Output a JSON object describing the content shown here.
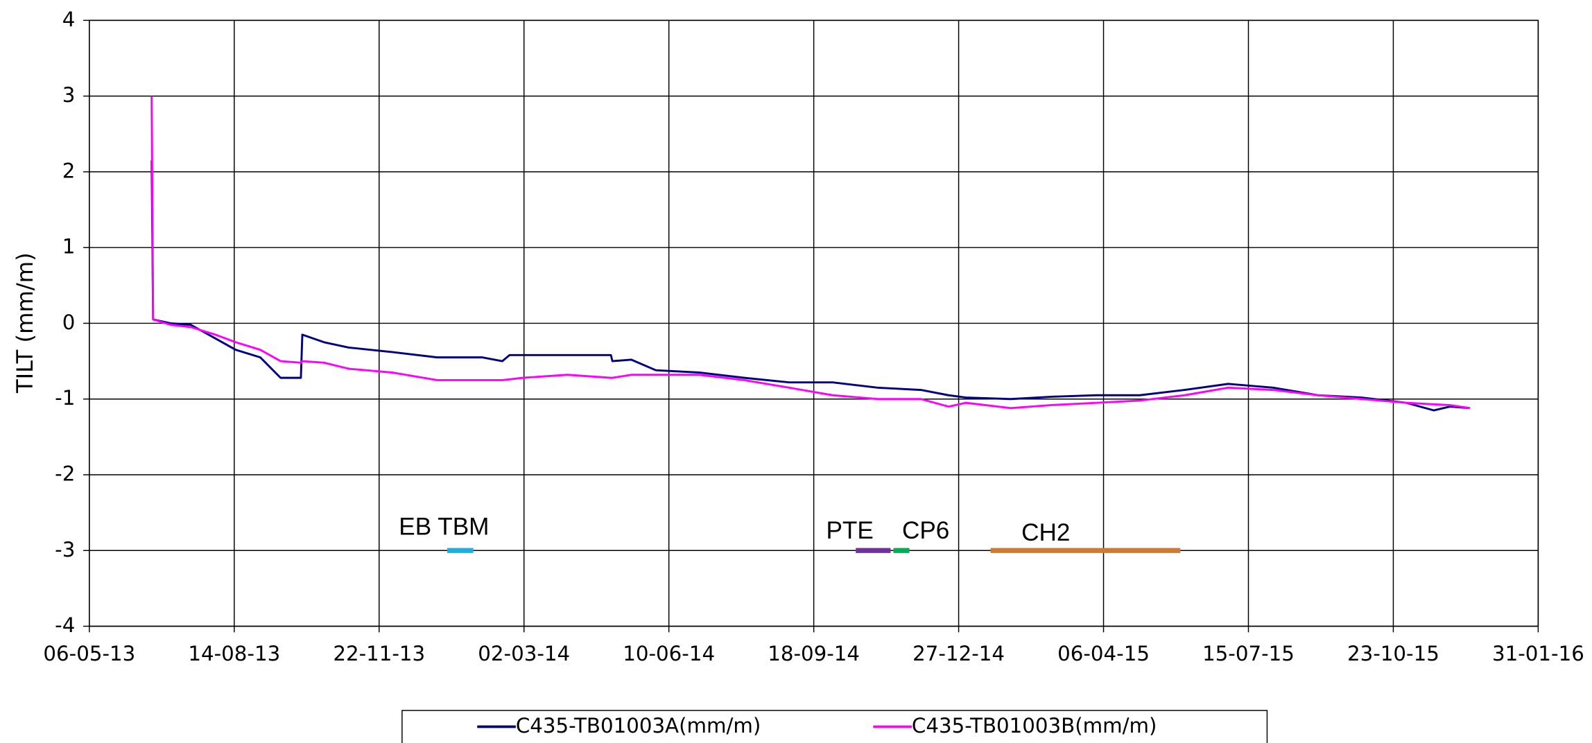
{
  "chart_data": {
    "type": "line",
    "y_label": "TILT (mm/m)",
    "x": [
      "2013-06-18",
      "2013-06-19",
      "2013-07-01",
      "2013-07-15",
      "2013-08-01",
      "2013-08-15",
      "2013-09-01",
      "2013-09-15",
      "2013-09-29",
      "2013-09-30",
      "2013-10-15",
      "2013-11-01",
      "2013-12-01",
      "2014-01-01",
      "2014-02-01",
      "2014-02-15",
      "2014-02-20",
      "2014-03-01",
      "2014-04-01",
      "2014-05-01",
      "2014-05-02",
      "2014-05-15",
      "2014-06-01",
      "2014-07-01",
      "2014-08-01",
      "2014-09-01",
      "2014-10-01",
      "2014-11-01",
      "2014-12-01",
      "2014-12-20",
      "2015-01-01",
      "2015-02-01",
      "2015-03-01",
      "2015-04-01",
      "2015-05-01",
      "2015-06-01",
      "2015-07-01",
      "2015-08-01",
      "2015-09-01",
      "2015-10-01",
      "2015-11-01",
      "2015-11-20",
      "2015-12-01",
      "2015-12-15"
    ],
    "series": [
      {
        "name": "C435-TB01003A(mm/m)",
        "color": "#000080",
        "values": [
          2.15,
          0.05,
          0.0,
          -0.02,
          -0.2,
          -0.35,
          -0.45,
          -0.72,
          -0.72,
          -0.15,
          -0.25,
          -0.32,
          -0.38,
          -0.45,
          -0.45,
          -0.5,
          -0.42,
          -0.42,
          -0.42,
          -0.42,
          -0.5,
          -0.48,
          -0.62,
          -0.65,
          -0.72,
          -0.78,
          -0.78,
          -0.85,
          -0.88,
          -0.95,
          -0.98,
          -1.0,
          -0.97,
          -0.95,
          -0.95,
          -0.88,
          -0.8,
          -0.85,
          -0.95,
          -0.98,
          -1.05,
          -1.15,
          -1.1,
          -1.12
        ]
      },
      {
        "name": "C435-TB01003B(mm/m)",
        "color": "#ff00ff",
        "values": [
          3.0,
          0.05,
          -0.02,
          -0.05,
          -0.15,
          -0.25,
          -0.35,
          -0.5,
          -0.52,
          -0.5,
          -0.52,
          -0.6,
          -0.65,
          -0.75,
          -0.75,
          -0.75,
          -0.74,
          -0.72,
          -0.68,
          -0.72,
          -0.72,
          -0.68,
          -0.68,
          -0.68,
          -0.75,
          -0.85,
          -0.95,
          -1.0,
          -1.0,
          -1.1,
          -1.05,
          -1.12,
          -1.08,
          -1.05,
          -1.02,
          -0.95,
          -0.85,
          -0.88,
          -0.95,
          -1.0,
          -1.05,
          -1.07,
          -1.08,
          -1.12
        ]
      }
    ],
    "xlim": [
      "2013-05-06",
      "2016-01-31"
    ],
    "xticks": [
      {
        "value": "2013-05-06",
        "label": "06-05-13"
      },
      {
        "value": "2013-08-14",
        "label": "14-08-13"
      },
      {
        "value": "2013-11-22",
        "label": "22-11-13"
      },
      {
        "value": "2014-03-02",
        "label": "02-03-14"
      },
      {
        "value": "2014-06-10",
        "label": "10-06-14"
      },
      {
        "value": "2014-09-18",
        "label": "18-09-14"
      },
      {
        "value": "2014-12-27",
        "label": "27-12-14"
      },
      {
        "value": "2015-04-06",
        "label": "06-04-15"
      },
      {
        "value": "2015-07-15",
        "label": "15-07-15"
      },
      {
        "value": "2015-10-23",
        "label": "23-10-15"
      },
      {
        "value": "2016-01-31",
        "label": "31-01-16"
      }
    ],
    "ylim": [
      -4,
      4
    ],
    "yticks": [
      -4,
      -3,
      -2,
      -1,
      0,
      1,
      2,
      3,
      4
    ],
    "grid": true,
    "legend": "bottom",
    "annotations": [
      {
        "text": "EB TBM",
        "start": "2014-01-08",
        "end": "2014-01-26",
        "y": -3,
        "color": "#1ab0e0"
      },
      {
        "text": "PTE",
        "start": "2014-10-17",
        "end": "2014-11-10",
        "y": -3,
        "color": "#7030a0"
      },
      {
        "text": "CP6",
        "start": "2014-11-12",
        "end": "2014-11-23",
        "y": -3,
        "color": "#00b050"
      },
      {
        "text": "CH2",
        "start": "2015-01-18",
        "end": "2015-05-29",
        "y": -3,
        "color": "#d07a30"
      }
    ]
  }
}
